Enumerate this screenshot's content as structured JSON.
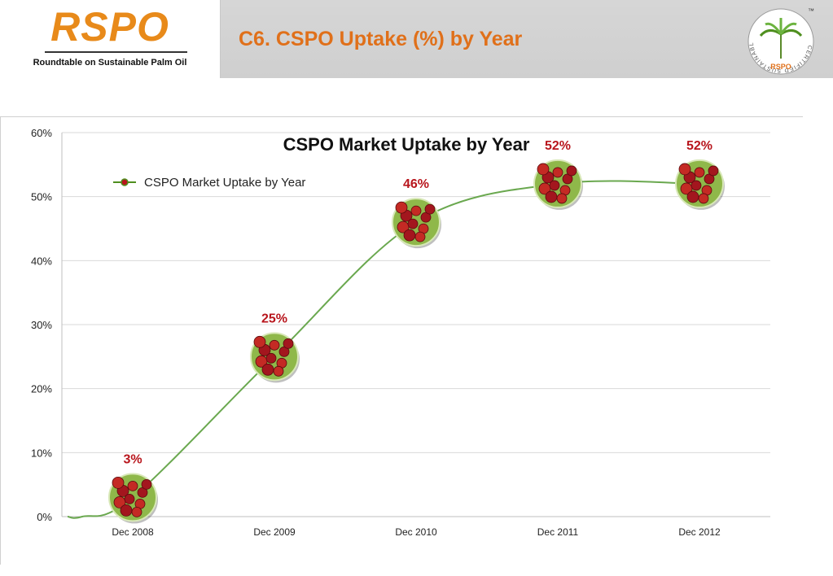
{
  "header": {
    "logo_text": "RSPO",
    "logo_subtitle": "Roundtable on Sustainable Palm Oil",
    "slide_title": "C6. CSPO Uptake (%) by Year",
    "badge": {
      "ring_text": "CERTIFIED SUSTAINABLE PALM OIL",
      "tm": "™",
      "brand": "RSPO",
      "icon": "palm-tree-icon"
    }
  },
  "colors": {
    "brand_orange": "#e0701a",
    "line_green": "#6aa84f",
    "label_red": "#b8151c",
    "grid": "#d9d9d9"
  },
  "chart_data": {
    "type": "line",
    "title": "CSPO Market Uptake by Year",
    "categories": [
      "Dec 2008",
      "Dec 2009",
      "Dec 2010",
      "Dec 2011",
      "Dec 2012"
    ],
    "series": [
      {
        "name": "CSPO Market Uptake by Year",
        "values": [
          3,
          25,
          46,
          52,
          52
        ],
        "labels": [
          "3%",
          "25%",
          "46%",
          "52%",
          "52%"
        ],
        "marker": "palm-fruit-bunch-icon"
      }
    ],
    "yticks": [
      "0%",
      "10%",
      "20%",
      "30%",
      "40%",
      "50%",
      "60%"
    ],
    "ylim": [
      0,
      60
    ],
    "grid": true,
    "legend": "top-left"
  }
}
